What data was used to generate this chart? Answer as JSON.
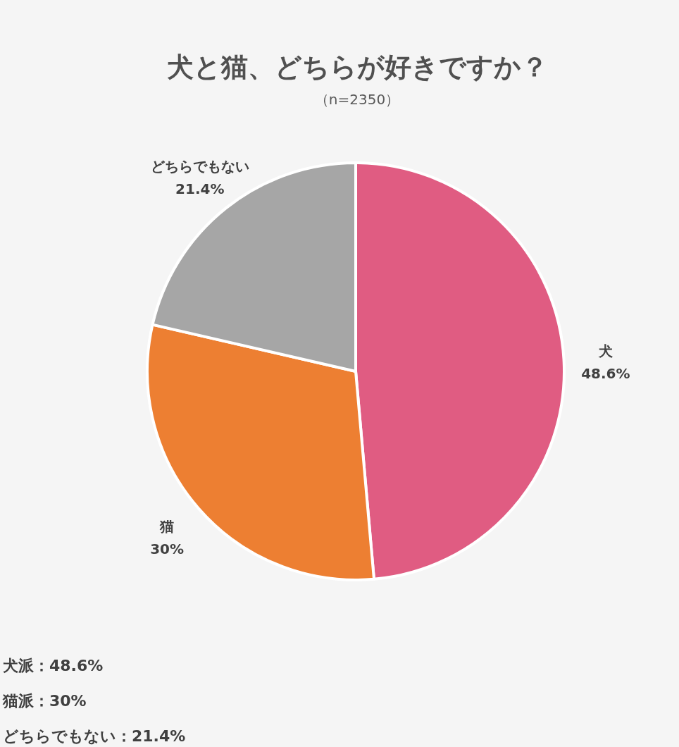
{
  "chart_data": {
    "type": "pie",
    "title": "犬と猫、どちらが好きですか？",
    "subtitle": "（n=2350）",
    "categories": [
      "犬",
      "猫",
      "どちらでもない"
    ],
    "values": [
      48.6,
      30,
      21.4
    ],
    "colors": [
      "#e05c82",
      "#ed7f32",
      "#a6a6a6"
    ],
    "value_labels": [
      "48.6%",
      "30%",
      "21.4%"
    ],
    "annotations": [
      "犬派：48.6%",
      "猫派：30%",
      "どちらでもない：21.4%"
    ]
  }
}
